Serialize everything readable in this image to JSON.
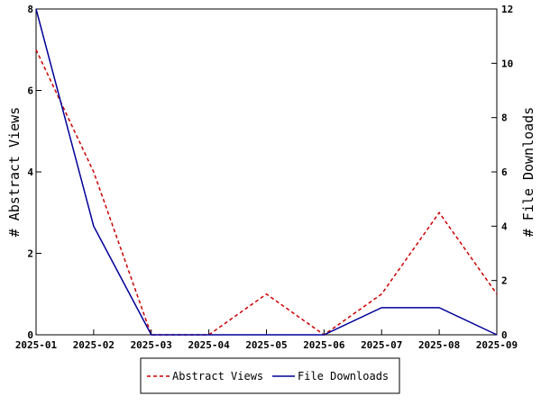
{
  "chart_data": {
    "type": "line",
    "categories": [
      "2025-01",
      "2025-02",
      "2025-03",
      "2025-04",
      "2025-05",
      "2025-06",
      "2025-07",
      "2025-08",
      "2025-09"
    ],
    "series": [
      {
        "name": "Abstract Views",
        "axis": "left",
        "color": "#cc0000",
        "style": "dashed",
        "values": [
          7,
          4,
          0,
          0,
          1,
          0,
          1,
          3,
          1
        ]
      },
      {
        "name": "File Downloads",
        "axis": "right",
        "color": "#000099",
        "style": "solid",
        "values": [
          12,
          4,
          0,
          0,
          0,
          0,
          1,
          1,
          0
        ]
      }
    ],
    "ylabel": "# Abstract Views",
    "y2label": "# File Downloads",
    "ylim": [
      0,
      8
    ],
    "y2lim": [
      0,
      12
    ],
    "yticks": [
      0,
      2,
      4,
      6,
      8
    ],
    "y2ticks": [
      0,
      2,
      4,
      6,
      8,
      10,
      12
    ],
    "grid": false,
    "legend_position": "bottom"
  }
}
